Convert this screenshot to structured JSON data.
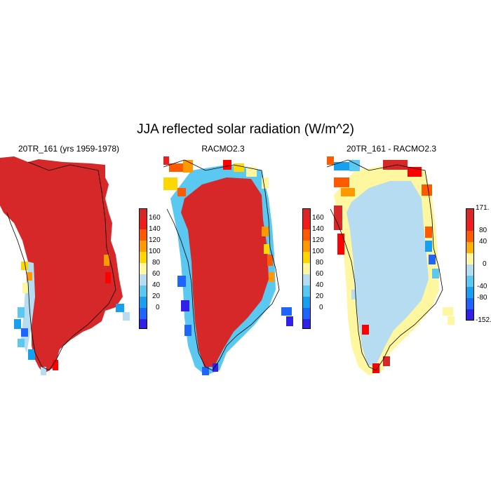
{
  "title": "JJA reflected solar radiation (W/m^2)",
  "panels": [
    {
      "title": "20TR_161 (yrs 1959-1978)",
      "colorbar": {
        "labels": [
          "160",
          "140",
          "120",
          "100",
          "80",
          "60",
          "40",
          "20",
          "0"
        ],
        "colors": [
          "#d62828",
          "#f01d1d",
          "#ff5a00",
          "#ff9900",
          "#ffd700",
          "#fff7a0",
          "#b5dcf0",
          "#5ac8f0",
          "#18a0f0",
          "#1e64ff",
          "#3320e8"
        ]
      }
    },
    {
      "title": "RACMO2.3",
      "colorbar": {
        "labels": [
          "160",
          "140",
          "120",
          "100",
          "80",
          "60",
          "40",
          "20",
          "0"
        ],
        "colors": [
          "#d62828",
          "#f01d1d",
          "#ff5a00",
          "#ff9900",
          "#ffd700",
          "#fff7a0",
          "#b5dcf0",
          "#5ac8f0",
          "#18a0f0",
          "#1e64ff",
          "#3320e8"
        ]
      }
    },
    {
      "title": "20TR_161 - RACMO2.3",
      "colorbar": {
        "labels": [
          "171.",
          "80",
          "40",
          "0",
          "-40",
          "-80",
          "-152."
        ],
        "colors": [
          "#d62828",
          "#f01d1d",
          "#ff5a00",
          "#ffb000",
          "#fff7a0",
          "#b5dcf0",
          "#5ac8f0",
          "#18a0f0",
          "#1e64ff",
          "#3320e8"
        ]
      }
    }
  ]
}
